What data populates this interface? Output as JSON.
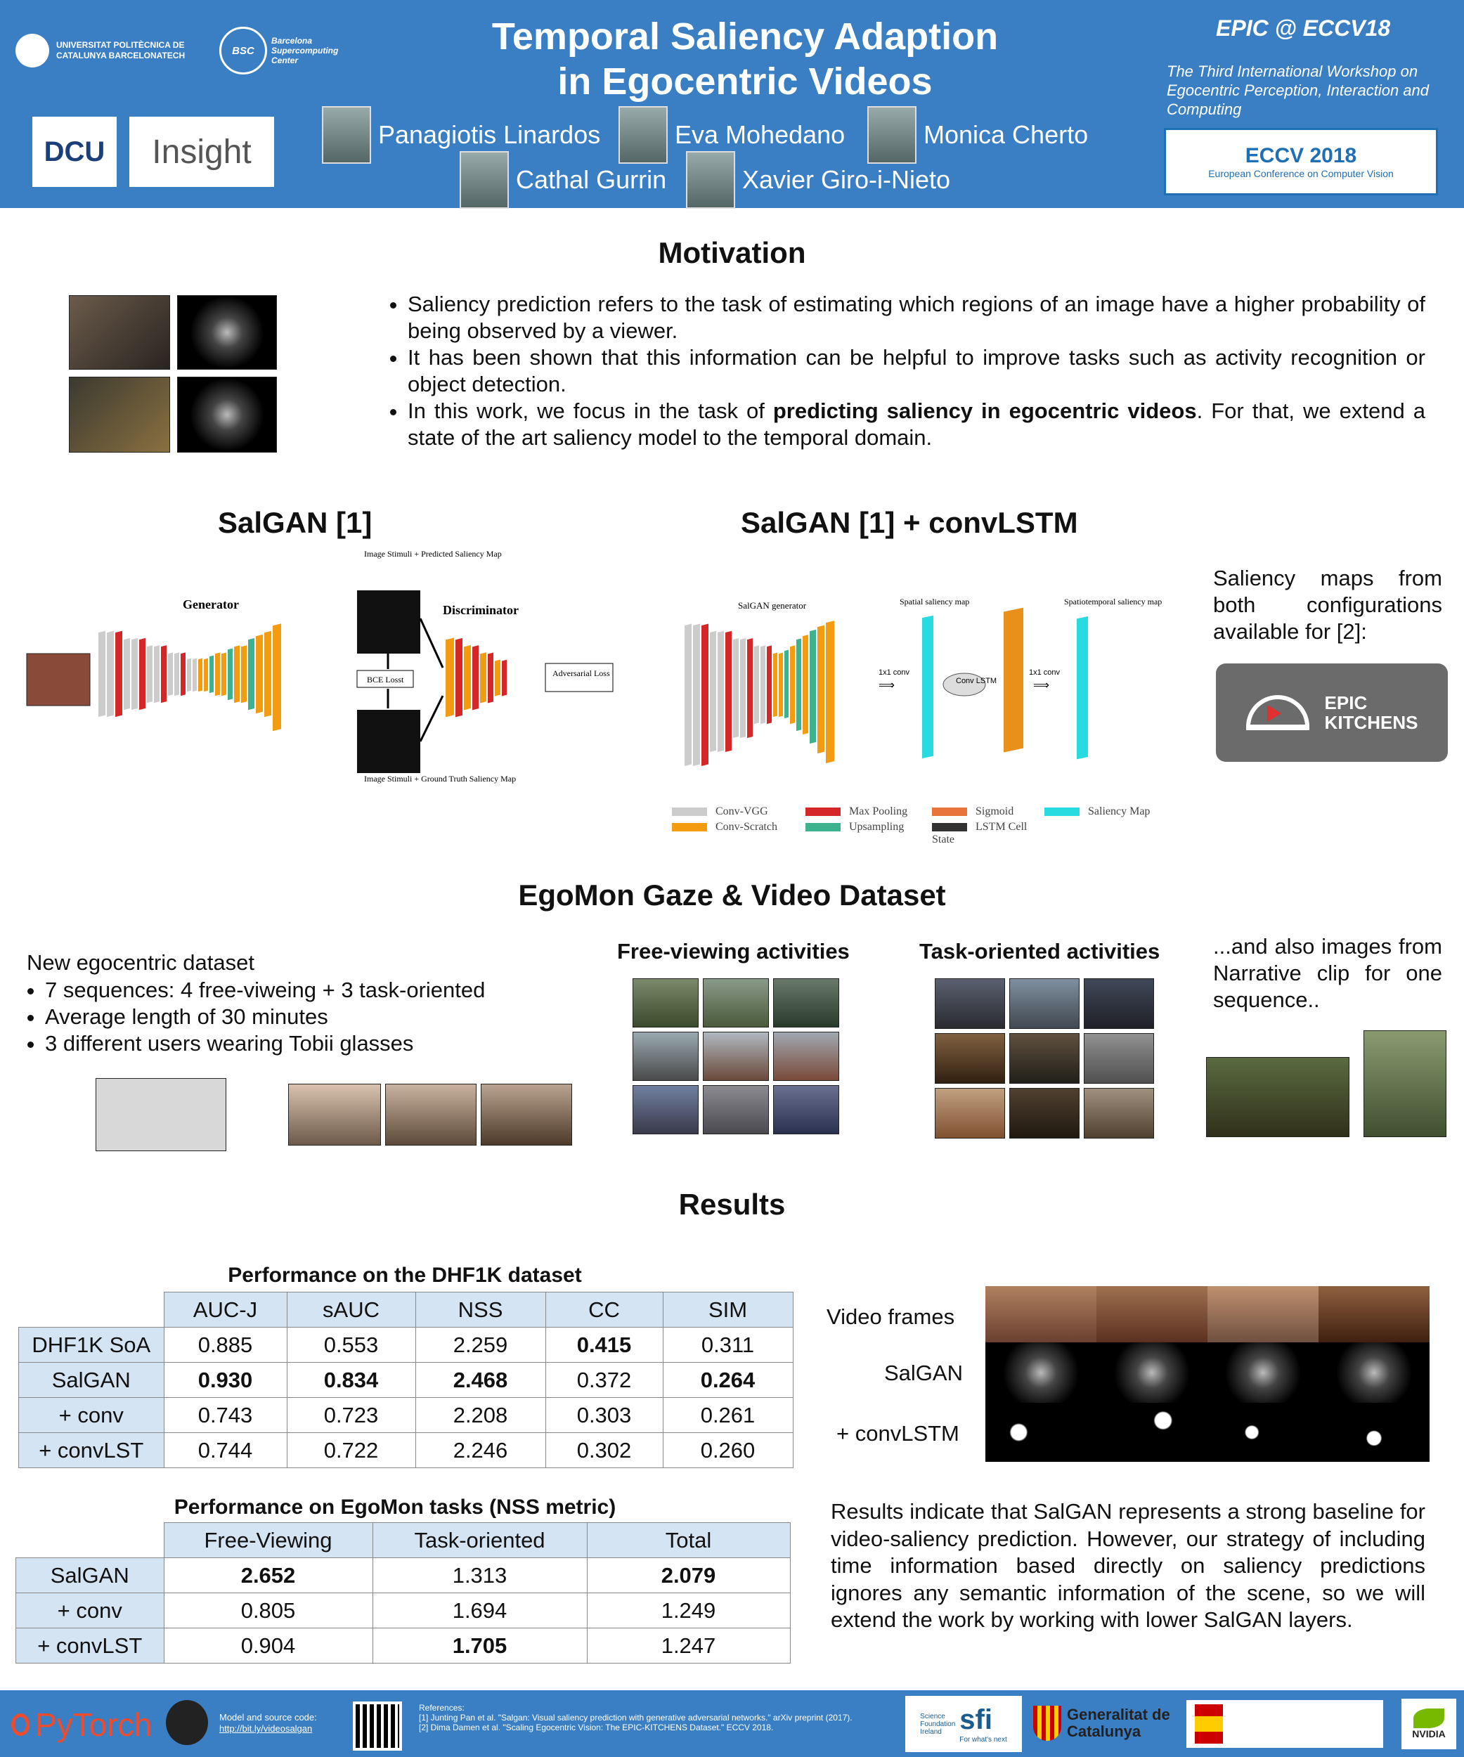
{
  "header": {
    "title_line1": "Temporal Saliency Adaption",
    "title_line2": "in Egocentric Videos",
    "upc_logo": "UNIVERSITAT POLITÈCNICA DE CATALUNYA BARCELONATECH",
    "bsc_logo": "Barcelona Supercomputing Center",
    "dcu_logo": "DCU",
    "insight_logo": "Insight",
    "authors": [
      "Panagiotis Linardos",
      "Eva Mohedano",
      "Monica Cherto",
      "Cathal Gurrin",
      "Xavier Giro-i-Nieto"
    ],
    "workshop": "EPIC @ ECCV18",
    "workshop_desc": "The Third International Workshop on Egocentric Perception, Interaction and Computing",
    "eccv_logo": "ECCV 2018",
    "eccv_sub": "European Conference on Computer Vision"
  },
  "motivation": {
    "title": "Motivation",
    "bullets": [
      "Saliency prediction refers to the task of estimating which regions of an image have a higher probability of being observed by a viewer.",
      "It has been shown that this information can be helpful to improve tasks such as activity recognition or object detection."
    ],
    "bullet3_pre": "In this work, we focus in the task of ",
    "bullet3_bold": "predicting saliency in egocentric videos",
    "bullet3_post": ". For that, we extend a state of the art saliency model to the temporal domain."
  },
  "salgan": {
    "title": "SalGAN [1]",
    "generator": "Generator",
    "discriminator": "Discriminator",
    "bce": "BCE Losst",
    "adv": "Adversarial Loss",
    "top_label": "Image Stimuli + Predicted Saliency Map",
    "bottom_label": "Image Stimuli + Ground Truth Saliency Map"
  },
  "salgan_lstm": {
    "title": "SalGAN [1] + convLSTM",
    "gen_label": "SalGAN generator",
    "spatial": "Spatial saliency map",
    "spatiotemporal": "Spatiotemporal saliency map",
    "conv1": "1x1 conv",
    "conv2": "1x1 conv",
    "convlstm": "Conv LSTM",
    "legend": [
      {
        "label": "Conv-VGG",
        "color": "#cccccc"
      },
      {
        "label": "Conv-Scratch",
        "color": "#f39c12"
      },
      {
        "label": "Max Pooling",
        "color": "#d62728"
      },
      {
        "label": "Upsampling",
        "color": "#3cb38e"
      },
      {
        "label": "Sigmoid",
        "color": "#e8743b"
      },
      {
        "label": "LSTM Cell State",
        "color": "#333333"
      },
      {
        "label": "Saliency Map",
        "color": "#27dbe0"
      }
    ]
  },
  "epic_note": {
    "text": "Saliency maps from both configurations available for [2]:",
    "logo_line1": "EPIC",
    "logo_line2": "KITCHENS"
  },
  "dataset": {
    "title": "EgoMon Gaze & Video Dataset",
    "intro": "New egocentric dataset",
    "bullets": [
      "7 sequences: 4 free-viweing + 3 task-oriented",
      "Average length of 30 minutes",
      "3 different users wearing Tobii glasses"
    ],
    "free": "Free-viewing activities",
    "task": "Task-oriented activities",
    "narrative": "...and also images from Narrative clip for one sequence.."
  },
  "results": {
    "title": "Results",
    "table1_caption": "Performance on the DHF1K dataset",
    "table1_headers": [
      "AUC-J",
      "sAUC",
      "NSS",
      "CC",
      "SIM"
    ],
    "table1_rows": [
      {
        "name": "DHF1K SoA",
        "values": [
          "0.885",
          "0.553",
          "2.259",
          "0.415",
          "0.311"
        ],
        "bold": [
          false,
          false,
          false,
          true,
          false
        ]
      },
      {
        "name": "SalGAN",
        "values": [
          "0.930",
          "0.834",
          "2.468",
          "0.372",
          "0.264"
        ],
        "bold": [
          true,
          true,
          true,
          false,
          true
        ]
      },
      {
        "name": "+ conv",
        "values": [
          "0.743",
          "0.723",
          "2.208",
          "0.303",
          "0.261"
        ],
        "bold": [
          false,
          false,
          false,
          false,
          false
        ]
      },
      {
        "name": "+ convLST",
        "values": [
          "0.744",
          "0.722",
          "2.246",
          "0.302",
          "0.260"
        ],
        "bold": [
          false,
          false,
          false,
          false,
          false
        ]
      }
    ],
    "table2_caption": "Performance on EgoMon tasks (NSS metric)",
    "table2_headers": [
      "Free-Viewing",
      "Task-oriented",
      "Total"
    ],
    "table2_rows": [
      {
        "name": "SalGAN",
        "values": [
          "2.652",
          "1.313",
          "2.079"
        ],
        "bold": [
          true,
          false,
          true
        ]
      },
      {
        "name": "+ conv",
        "values": [
          "0.805",
          "1.694",
          "1.249"
        ],
        "bold": [
          false,
          false,
          false
        ]
      },
      {
        "name": "+ convLST",
        "values": [
          "0.904",
          "1.705",
          "1.247"
        ],
        "bold": [
          false,
          true,
          false
        ]
      }
    ],
    "frames_label": "Video frames",
    "salgan_label": "SalGAN",
    "lstm_label": "+ convLSTM",
    "conclusion": "Results indicate that SalGAN represents a strong baseline for video-saliency prediction. However, our strategy of including time information based directly on saliency predictions ignores any semantic information of the scene, so we will extend the work by working with lower SalGAN layers."
  },
  "footer": {
    "pytorch": "PyTorch",
    "code_label": "Model and source code:",
    "code_link": "http://bit.ly/videosalgan",
    "refs_title": "References:",
    "ref1": "[1] Junting Pan et al. \"Salgan: Visual saliency prediction with generative adversarial networks.\" arXiv preprint (2017).",
    "ref2": "[2] Dima Damen et al. \"Scaling Egocentric Vision: The EPIC-KITCHENS Dataset.\" ECCV 2018.",
    "sfi": "sfi",
    "sfi_sub": "Science Foundation Ireland",
    "sfi_tag": "For what's next",
    "gencat": "Generalitat de Catalunya",
    "nvidia": "NVIDIA"
  }
}
